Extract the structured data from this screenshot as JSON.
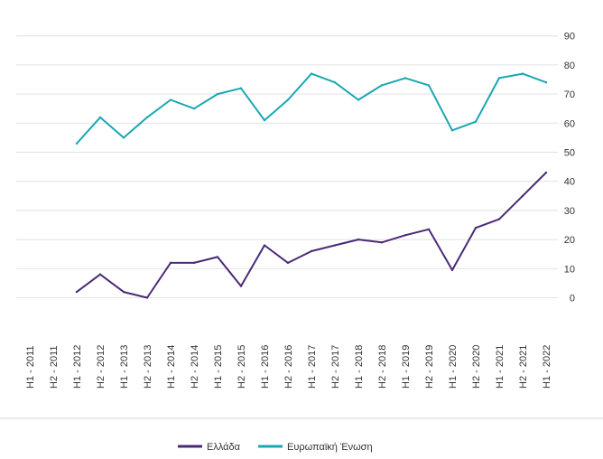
{
  "chart_data": {
    "type": "line",
    "categories": [
      "H1 - 2011",
      "H2 - 2011",
      "H1 - 2012",
      "H2 - 2012",
      "H1 - 2013",
      "H2 - 2013",
      "H1 - 2014",
      "H2 - 2014",
      "H1 - 2015",
      "H2 - 2015",
      "H1 - 2016",
      "H2 - 2016",
      "H1 - 2017",
      "H2 - 2017",
      "H1 - 2018",
      "H2 - 2018",
      "H1 - 2019",
      "H2 - 2019",
      "H1 - 2020",
      "H2 - 2020",
      "H1 - 2021",
      "H2 - 2021",
      "H1 - 2022"
    ],
    "series": [
      {
        "name": "Ελλάδα",
        "color": "#4a2a77",
        "values": [
          null,
          null,
          2,
          8,
          2,
          0,
          12,
          12,
          14,
          4,
          18,
          12,
          16,
          18,
          20,
          19,
          21.5,
          23.5,
          9.5,
          24,
          27,
          35,
          43
        ]
      },
      {
        "name": "Ευρωπαϊκή Ένωση",
        "color": "#1aa7b3",
        "values": [
          null,
          null,
          53,
          62,
          55,
          62,
          68,
          65,
          70,
          72,
          61,
          68,
          77,
          74,
          68,
          73,
          75.5,
          73,
          57.5,
          60.5,
          75.5,
          77,
          74
        ]
      }
    ],
    "ylim": [
      0,
      90
    ],
    "yticks": [
      "0",
      "10",
      "20",
      "30",
      "40",
      "50",
      "60",
      "70",
      "80",
      "90"
    ],
    "grid": true,
    "legend": "bottom"
  }
}
